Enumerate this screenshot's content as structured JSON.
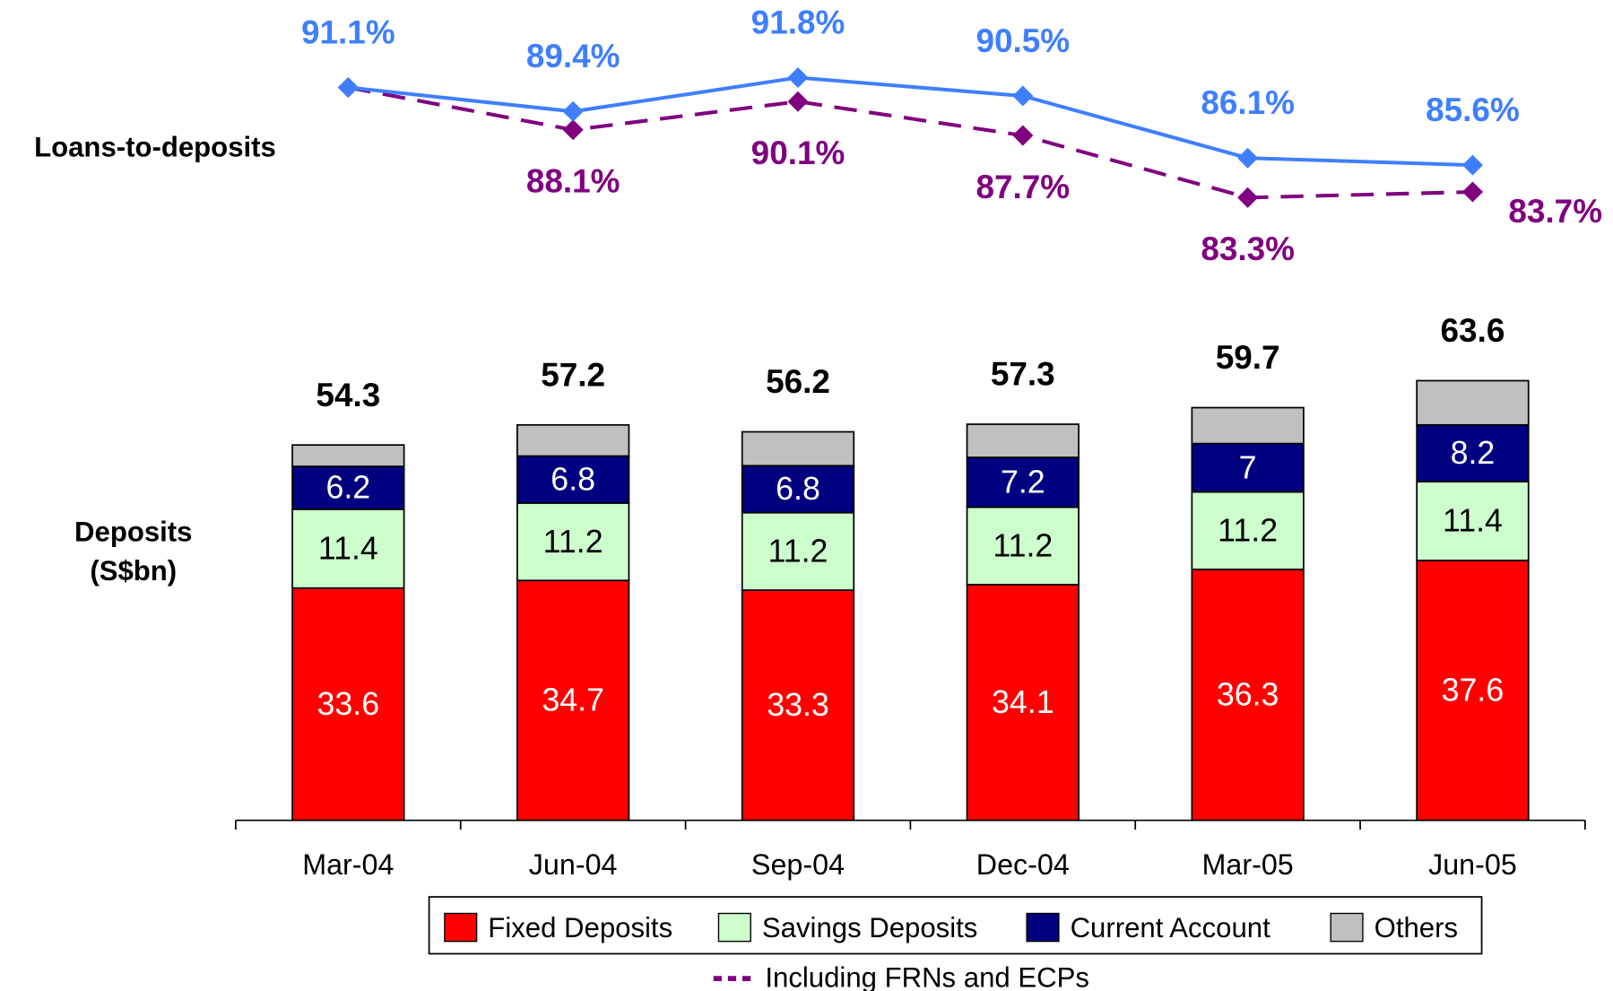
{
  "chart_data": [
    {
      "type": "line",
      "label": "Loans-to-deposits",
      "categories": [
        "Mar-04",
        "Jun-04",
        "Sep-04",
        "Dec-04",
        "Mar-05",
        "Jun-05"
      ],
      "series": [
        {
          "color": "#3f7fff",
          "values": [
            91.1,
            89.4,
            91.8,
            90.5,
            86.1,
            85.6
          ],
          "value_labels": [
            "91.1%",
            "89.4%",
            "91.8%",
            "90.5%",
            "86.1%",
            "85.6%"
          ]
        },
        {
          "name": "Including FRNs and ECPs",
          "color": "#800080",
          "dashed": true,
          "values": [
            91.1,
            88.1,
            90.1,
            87.7,
            83.3,
            83.7
          ],
          "value_labels": [
            null,
            "88.1%",
            "90.1%",
            "87.7%",
            "83.3%",
            "83.7%"
          ]
        }
      ]
    },
    {
      "type": "stacked_bar",
      "ylabel": [
        "Deposits",
        "(S$bn)"
      ],
      "categories": [
        "Mar-04",
        "Jun-04",
        "Sep-04",
        "Dec-04",
        "Mar-05",
        "Jun-05"
      ],
      "totals": [
        54.3,
        57.2,
        56.2,
        57.3,
        59.7,
        63.6
      ],
      "series": [
        {
          "name": "Fixed Deposits",
          "color": "#ff0000",
          "label_color": "#ffffff",
          "show_labels": true,
          "values": [
            33.6,
            34.7,
            33.3,
            34.1,
            36.3,
            37.6
          ]
        },
        {
          "name": "Savings Deposits",
          "color": "#ccffcc",
          "label_color": "#000000",
          "show_labels": true,
          "values": [
            11.4,
            11.2,
            11.2,
            11.2,
            11.2,
            11.4
          ]
        },
        {
          "name": "Current Account",
          "color": "#000080",
          "label_color": "#ffffff",
          "show_labels": true,
          "values": [
            6.2,
            6.8,
            6.8,
            7.2,
            7.0,
            8.2
          ]
        },
        {
          "name": "Others",
          "color": "#c0c0c0",
          "label_color": "#000000",
          "show_labels": false,
          "values": [
            3.1,
            4.5,
            4.9,
            4.8,
            5.2,
            6.4
          ]
        }
      ]
    }
  ]
}
